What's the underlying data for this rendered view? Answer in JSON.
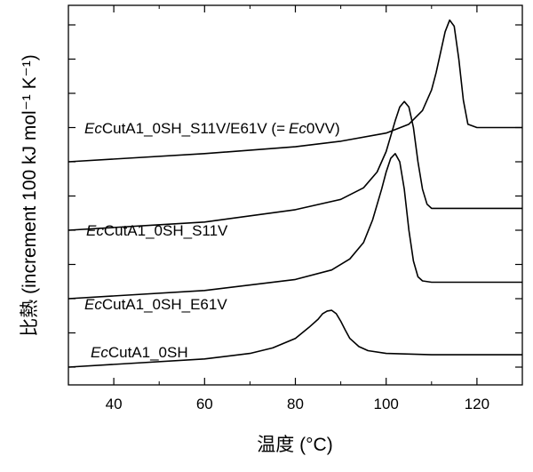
{
  "chart_data": {
    "type": "line",
    "xlabel": "温度 (°C)",
    "ylabel": "比熱 (increment 100 kJ mol⁻¹ K⁻¹)",
    "xlim": [
      30,
      130
    ],
    "x_ticks": [
      40,
      60,
      80,
      100,
      120
    ],
    "y_ticks_shown": false,
    "legend": "none (series labels placed beside each curve)",
    "series": [
      {
        "name": "EcCutA1_0SH",
        "italic_prefix": "Ec",
        "rest": "CutA1_0SH",
        "x": [
          30,
          60,
          70,
          75,
          80,
          83,
          85,
          86,
          87,
          88,
          89,
          90,
          91,
          92,
          94,
          96,
          100,
          110,
          130
        ],
        "values": [
          0.0,
          0.12,
          0.2,
          0.28,
          0.42,
          0.58,
          0.7,
          0.78,
          0.82,
          0.83,
          0.78,
          0.67,
          0.54,
          0.42,
          0.3,
          0.24,
          0.2,
          0.18,
          0.18
        ]
      },
      {
        "name": "EcCutA1_0SH_E61V",
        "italic_prefix": "Ec",
        "rest": "CutA1_0SH_E61V",
        "x": [
          30,
          60,
          80,
          88,
          92,
          95,
          97,
          99,
          100,
          101,
          102,
          103,
          104,
          105,
          106,
          107,
          108,
          110,
          115,
          130
        ],
        "values": [
          1.0,
          1.12,
          1.28,
          1.42,
          1.58,
          1.82,
          2.15,
          2.6,
          2.85,
          3.05,
          3.12,
          3.0,
          2.6,
          2.0,
          1.55,
          1.32,
          1.26,
          1.24,
          1.24,
          1.24
        ]
      },
      {
        "name": "EcCutA1_0SH_S11V",
        "italic_prefix": "Ec",
        "rest": "CutA1_0SH_S11V",
        "x": [
          30,
          60,
          80,
          90,
          95,
          98,
          100,
          102,
          103,
          104,
          105,
          106,
          107,
          108,
          109,
          110,
          115,
          130
        ],
        "values": [
          2.0,
          2.12,
          2.3,
          2.45,
          2.62,
          2.85,
          3.15,
          3.6,
          3.8,
          3.88,
          3.8,
          3.5,
          3.0,
          2.6,
          2.38,
          2.32,
          2.32,
          2.32
        ]
      },
      {
        "name": "EcCutA1_0SH_S11V/E61V (= Ec0VV)",
        "italic_prefix": "Ec",
        "rest": "CutA1_0SH_S11V/E61V (=",
        "italic_mid": "Ec",
        "tail": "0VV)",
        "x": [
          30,
          60,
          80,
          90,
          100,
          105,
          108,
          110,
          111,
          112,
          113,
          114,
          115,
          116,
          117,
          118,
          120,
          130
        ],
        "values": [
          3.0,
          3.12,
          3.22,
          3.3,
          3.42,
          3.55,
          3.75,
          4.05,
          4.3,
          4.6,
          4.9,
          5.07,
          4.98,
          4.5,
          3.9,
          3.55,
          3.5,
          3.5
        ]
      }
    ]
  }
}
